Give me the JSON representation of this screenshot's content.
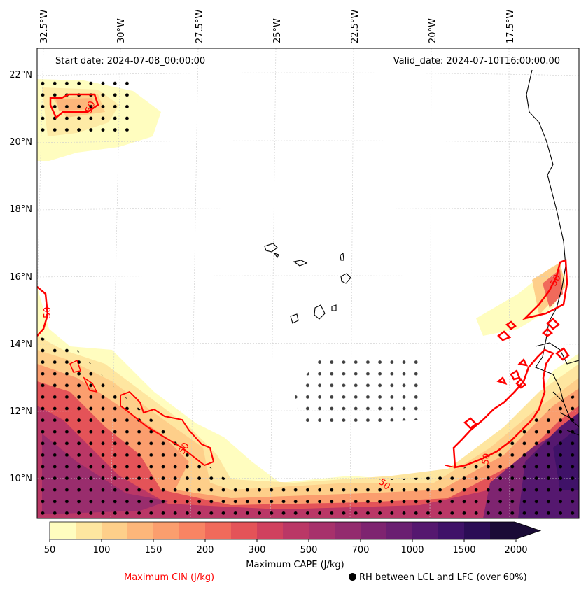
{
  "map": {
    "start_date_label": "Start date: 2024-07-08_00:00:00",
    "valid_date_label": "Valid_date: 2024-07-10T16:00:00.00",
    "lon_ticks": [
      "32.5°W",
      "30°W",
      "27.5°W",
      "25°W",
      "22.5°W",
      "20°W",
      "17.5°W"
    ],
    "lat_ticks": [
      "22°N",
      "20°N",
      "18°N",
      "16°N",
      "14°N",
      "12°N",
      "10°N"
    ],
    "contour_labels": [
      "50",
      "50",
      "50",
      "50",
      "50",
      "50"
    ]
  },
  "colorbar": {
    "title": "Maximum CAPE (J/kg)",
    "ticks": [
      "50",
      "100",
      "150",
      "200",
      "300",
      "500",
      "700",
      "1000",
      "1500",
      "2000"
    ],
    "colors": [
      "#fffdbf",
      "#fee6a0",
      "#fecf8a",
      "#fdb67a",
      "#fb9e6e",
      "#f88463",
      "#f06a5b",
      "#e45358",
      "#d0415e",
      "#ba3766",
      "#a7316b",
      "#932b6e",
      "#7e2470",
      "#6a1f71",
      "#55186f",
      "#3f1268",
      "#2b0d55",
      "#1a0b36"
    ]
  },
  "legend": {
    "cin_label": "Maximum CIN (J/kg)",
    "rh_label": "RH between LCL and LFC (over 60%)"
  },
  "colors": {
    "cin_contour": "#ff0000",
    "coast": "#000000",
    "grid": "#cccccc"
  }
}
